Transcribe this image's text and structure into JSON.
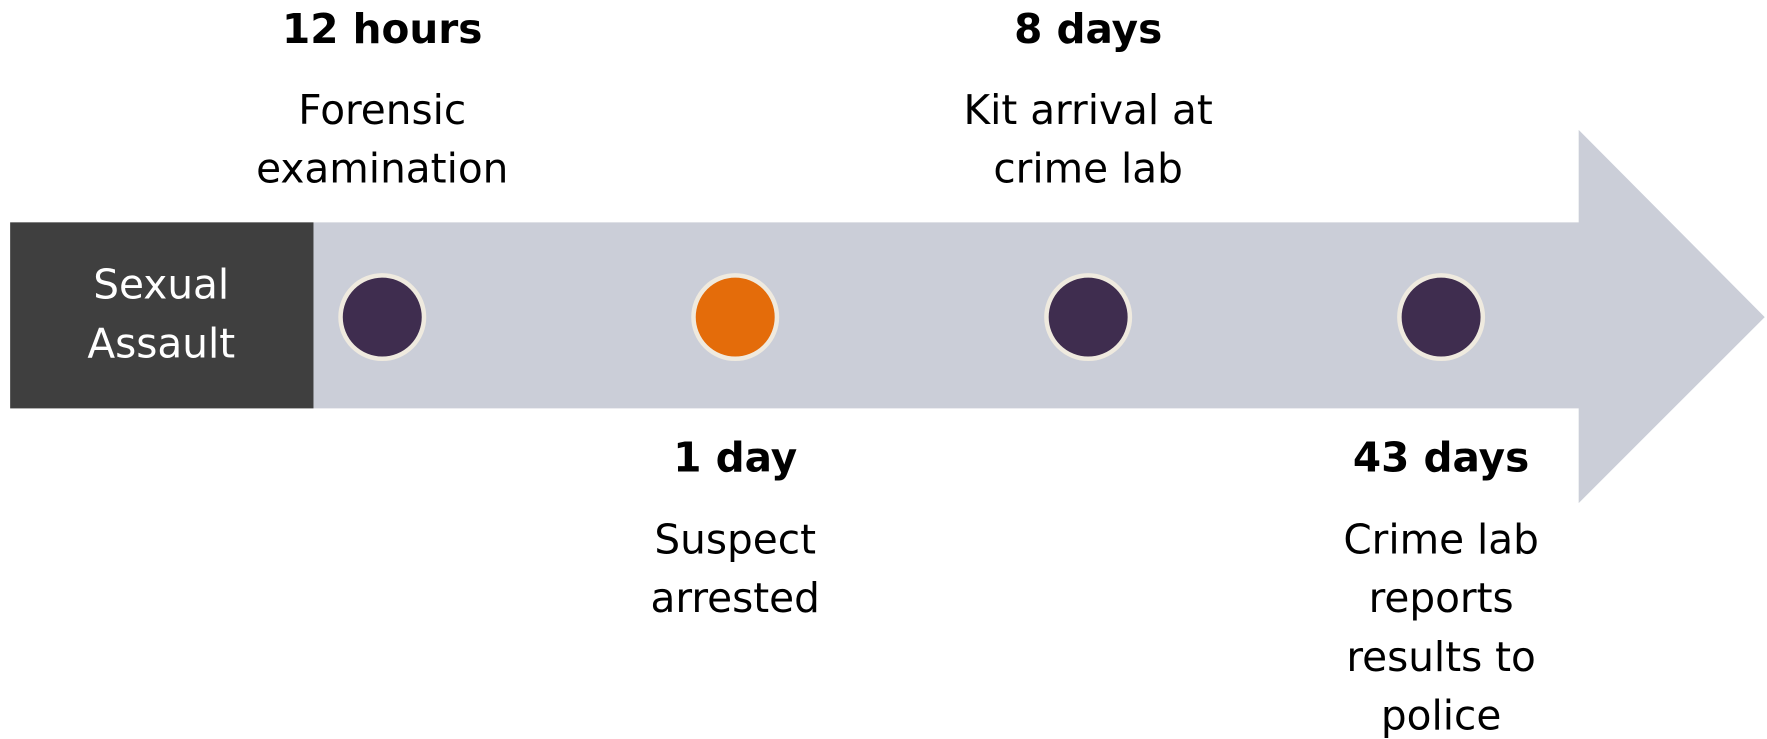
{
  "start": {
    "label": [
      "Sexual",
      "Assault"
    ]
  },
  "events": [
    {
      "time": "12 hours",
      "label": [
        "Forensic",
        "examination"
      ],
      "color": "#3f2d4f",
      "side": "top"
    },
    {
      "time": "1 day",
      "label": [
        "Suspect",
        "arrested"
      ],
      "color": "#e46c0a",
      "side": "bottom"
    },
    {
      "time": "8 days",
      "label": [
        "Kit arrival at",
        "crime lab"
      ],
      "color": "#3f2d4f",
      "side": "top"
    },
    {
      "time": "43 days",
      "label": [
        "Crime lab",
        "reports",
        "results to",
        "police"
      ],
      "color": "#3f2d4f",
      "side": "bottom"
    }
  ]
}
